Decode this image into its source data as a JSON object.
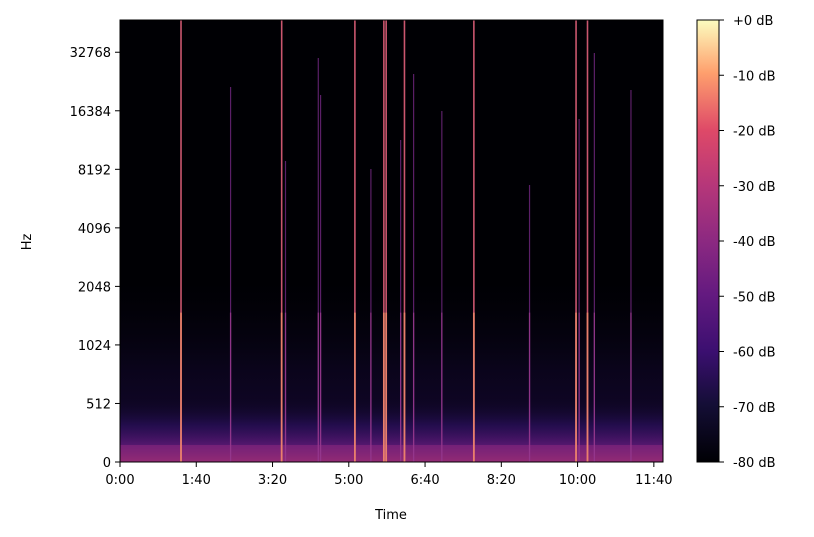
{
  "chart_data": {
    "type": "heatmap",
    "title": "",
    "xlabel": "Time",
    "ylabel": "Hz",
    "y_scale": "log2-ish (symlog)",
    "x_ticks": [
      {
        "label": "0:00",
        "value": 0
      },
      {
        "label": "1:40",
        "value": 100
      },
      {
        "label": "3:20",
        "value": 200
      },
      {
        "label": "5:00",
        "value": 300
      },
      {
        "label": "6:40",
        "value": 400
      },
      {
        "label": "8:20",
        "value": 500
      },
      {
        "label": "10:00",
        "value": 600
      },
      {
        "label": "11:40",
        "value": 700
      }
    ],
    "y_ticks": [
      {
        "label": "0",
        "value": 0
      },
      {
        "label": "512",
        "value": 512
      },
      {
        "label": "1024",
        "value": 1024
      },
      {
        "label": "2048",
        "value": 2048
      },
      {
        "label": "4096",
        "value": 4096
      },
      {
        "label": "8192",
        "value": 8192
      },
      {
        "label": "16384",
        "value": 16384
      },
      {
        "label": "32768",
        "value": 32768
      }
    ],
    "xlim": [
      0,
      712
    ],
    "ylim": [
      0,
      48000
    ],
    "colorbar": {
      "colormap": "magma",
      "range_db": [
        -80,
        0
      ],
      "ticks": [
        {
          "label": "+0 dB",
          "value": 0
        },
        {
          "label": "-10 dB",
          "value": -10
        },
        {
          "label": "-20 dB",
          "value": -20
        },
        {
          "label": "-30 dB",
          "value": -30
        },
        {
          "label": "-40 dB",
          "value": -40
        },
        {
          "label": "-50 dB",
          "value": -50
        },
        {
          "label": "-60 dB",
          "value": -60
        },
        {
          "label": "-70 dB",
          "value": -70
        },
        {
          "label": "-80 dB",
          "value": -80
        }
      ]
    },
    "transients_seconds": [
      80,
      145,
      212,
      217,
      260,
      263,
      308,
      329,
      346,
      349,
      368,
      373,
      385,
      422,
      464,
      537,
      598,
      602,
      613,
      622,
      670
    ],
    "strong_transients_seconds": [
      80,
      212,
      308,
      346,
      349,
      373,
      464,
      598,
      613
    ]
  }
}
